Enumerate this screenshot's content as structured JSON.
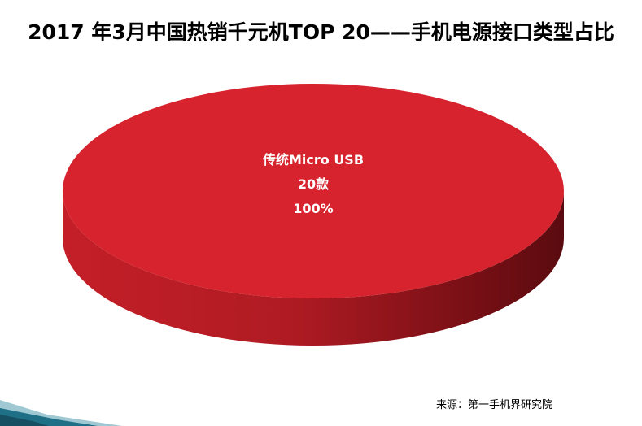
{
  "title": "2017 年3月中国热销千元机TOP 20——手机电源接口类型占比",
  "source": "来源：第一手机界研究院",
  "colors": {
    "slice_top": "#d7232d",
    "slice_side_light": "#c41f28",
    "slice_side_dark": "#5a0b0f",
    "label": "#ffffff",
    "corner_teal": "#1f6f86",
    "corner_light": "#9fc8d3"
  },
  "chart_data": {
    "type": "pie",
    "title": "2017 年3月中国热销千元机TOP 20——手机电源接口类型占比",
    "style": "3d",
    "slices": [
      {
        "name": "传统Micro USB",
        "value_label": "20款",
        "percent_label": "100%",
        "value": 20,
        "percent": 100
      }
    ]
  }
}
